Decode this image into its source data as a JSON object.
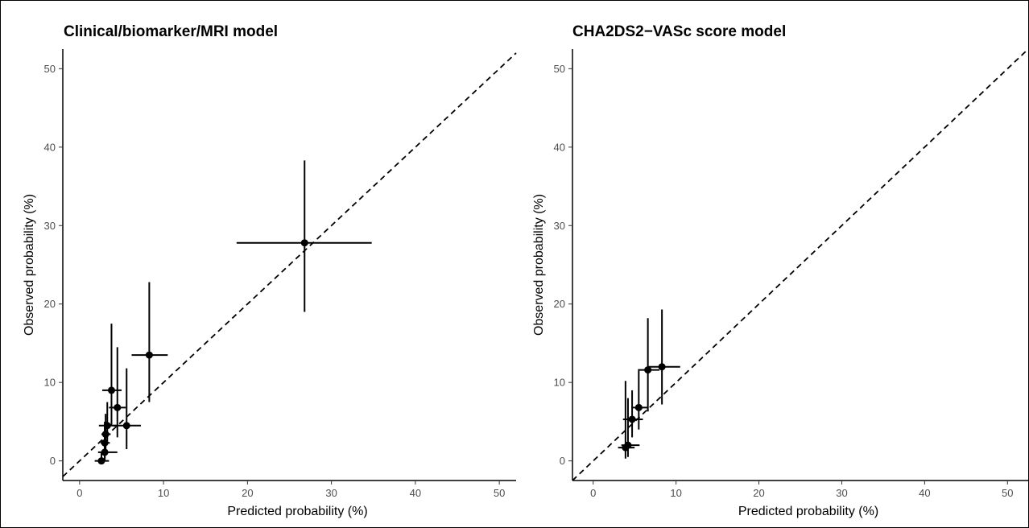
{
  "chart_data": [
    {
      "type": "scatter",
      "title": "Clinical/biomarker/MRI model",
      "xlabel": "Predicted probability (%)",
      "ylabel": "Observed probability (%)",
      "xlim": [
        -2,
        52
      ],
      "ylim": [
        -2.5,
        52.5
      ],
      "xticks": [
        0,
        10,
        20,
        30,
        40,
        50
      ],
      "yticks": [
        0,
        10,
        20,
        30,
        40,
        50
      ],
      "reference_line": "y = x (dashed)",
      "grid": false,
      "points": [
        {
          "x": 2.6,
          "y": 0.0,
          "x_lo": 1.8,
          "x_hi": 3.5,
          "y_lo": 0.0,
          "y_hi": 1.0
        },
        {
          "x": 3.0,
          "y": 1.1,
          "x_lo": 2.2,
          "x_hi": 4.5,
          "y_lo": 0.0,
          "y_hi": 4.5
        },
        {
          "x": 3.0,
          "y": 2.3,
          "x_lo": 2.5,
          "x_hi": 3.6,
          "y_lo": 0.3,
          "y_hi": 5.0
        },
        {
          "x": 3.1,
          "y": 3.4,
          "x_lo": 2.6,
          "x_hi": 3.7,
          "y_lo": 1.0,
          "y_hi": 6.0
        },
        {
          "x": 3.3,
          "y": 4.5,
          "x_lo": 2.3,
          "x_hi": 4.5,
          "y_lo": 2.5,
          "y_hi": 7.5
        },
        {
          "x": 3.8,
          "y": 9.0,
          "x_lo": 2.7,
          "x_hi": 5.0,
          "y_lo": 4.5,
          "y_hi": 17.5
        },
        {
          "x": 4.5,
          "y": 6.8,
          "x_lo": 3.5,
          "x_hi": 5.5,
          "y_lo": 3.0,
          "y_hi": 14.5
        },
        {
          "x": 5.6,
          "y": 4.5,
          "x_lo": 4.0,
          "x_hi": 7.3,
          "y_lo": 1.5,
          "y_hi": 11.8
        },
        {
          "x": 8.3,
          "y": 13.5,
          "x_lo": 6.2,
          "x_hi": 10.5,
          "y_lo": 7.5,
          "y_hi": 22.8
        },
        {
          "x": 26.8,
          "y": 27.8,
          "x_lo": 18.7,
          "x_hi": 34.8,
          "y_lo": 19.0,
          "y_hi": 38.3
        }
      ]
    },
    {
      "type": "scatter",
      "title": "CHA2DS2−VASc score model",
      "xlabel": "Predicted probability (%)",
      "ylabel": "Observed probability (%)",
      "xlim": [
        -2.5,
        52.5
      ],
      "ylim": [
        -2.5,
        52.5
      ],
      "xticks": [
        0,
        10,
        20,
        30,
        40,
        50
      ],
      "yticks": [
        0,
        10,
        20,
        30,
        40,
        50
      ],
      "reference_line": "y = x (dashed)",
      "grid": false,
      "points": [
        {
          "x": 3.9,
          "y": 1.7,
          "x_lo": 3.0,
          "x_hi": 5.0,
          "y_lo": 0.3,
          "y_hi": 10.2
        },
        {
          "x": 4.2,
          "y": 2.0,
          "x_lo": 3.4,
          "x_hi": 5.6,
          "y_lo": 0.5,
          "y_hi": 8.0
        },
        {
          "x": 4.7,
          "y": 5.3,
          "x_lo": 3.6,
          "x_hi": 6.0,
          "y_lo": 3.0,
          "y_hi": 9.0
        },
        {
          "x": 5.5,
          "y": 6.8,
          "x_lo": 4.6,
          "x_hi": 6.6,
          "y_lo": 4.0,
          "y_hi": 11.5
        },
        {
          "x": 6.6,
          "y": 11.6,
          "x_lo": 5.4,
          "x_hi": 8.0,
          "y_lo": 6.3,
          "y_hi": 18.2
        },
        {
          "x": 8.3,
          "y": 12.0,
          "x_lo": 6.5,
          "x_hi": 10.5,
          "y_lo": 7.2,
          "y_hi": 19.3
        }
      ]
    }
  ]
}
